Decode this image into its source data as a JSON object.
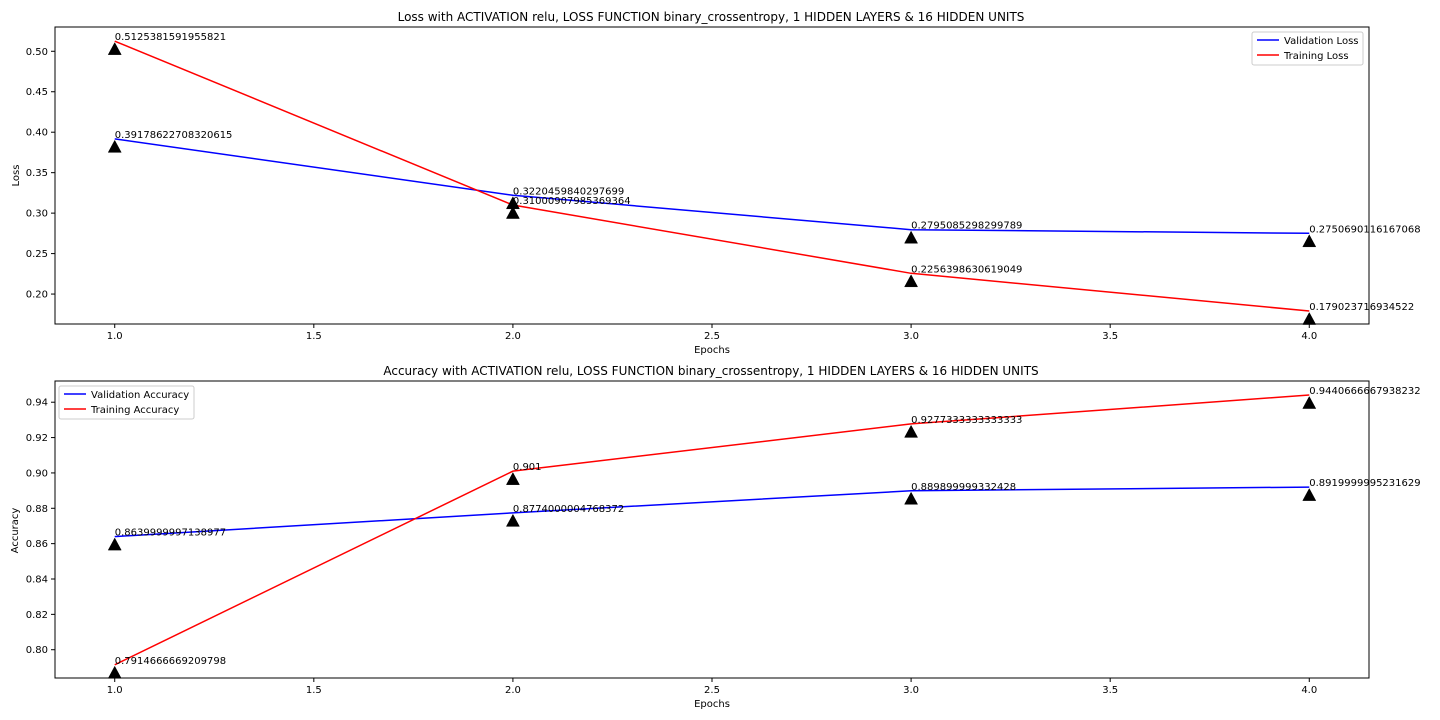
{
  "chart_data": [
    {
      "type": "line",
      "title": "Loss with ACTIVATION relu, LOSS FUNCTION binary_crossentropy, 1 HIDDEN LAYERS & 16 HIDDEN UNITS",
      "xlabel": "Epochs",
      "ylabel": "Loss",
      "x": [
        1,
        2,
        3,
        4
      ],
      "xlim": [
        0.85,
        4.15
      ],
      "ylim": [
        0.163,
        0.53
      ],
      "xticks": [
        "1.0",
        "1.5",
        "2.0",
        "2.5",
        "3.0",
        "3.5",
        "4.0"
      ],
      "yticks": [
        "0.20",
        "0.25",
        "0.30",
        "0.35",
        "0.40",
        "0.45",
        "0.50"
      ],
      "legend_position": "upper right",
      "series": [
        {
          "name": "Validation Loss",
          "color": "#0000ff",
          "values": [
            0.39178622708320615,
            0.3220459840297699,
            0.2795085298299789,
            0.2750690116167068
          ],
          "labels": [
            "0.39178622708320615",
            "0.3220459840297699",
            "0.2795085298299789",
            "0.2750690116167068"
          ]
        },
        {
          "name": "Training Loss",
          "color": "#ff0000",
          "values": [
            0.5125381591955821,
            0.31000907985369364,
            0.2256398630619049,
            0.179023716934522
          ],
          "labels": [
            "0.5125381591955821",
            "0.31000907985369364",
            "0.2256398630619049",
            "0.179023716934522"
          ]
        }
      ]
    },
    {
      "type": "line",
      "title": "Accuracy with ACTIVATION relu, LOSS FUNCTION binary_crossentropy, 1 HIDDEN LAYERS & 16 HIDDEN UNITS",
      "xlabel": "Epochs",
      "ylabel": "Accuracy",
      "x": [
        1,
        2,
        3,
        4
      ],
      "xlim": [
        0.85,
        4.15
      ],
      "ylim": [
        0.784,
        0.952
      ],
      "xticks": [
        "1.0",
        "1.5",
        "2.0",
        "2.5",
        "3.0",
        "3.5",
        "4.0"
      ],
      "yticks": [
        "0.80",
        "0.82",
        "0.84",
        "0.86",
        "0.88",
        "0.90",
        "0.92",
        "0.94"
      ],
      "legend_position": "upper left",
      "series": [
        {
          "name": "Validation Accuracy",
          "color": "#0000ff",
          "values": [
            0.8639999997138977,
            0.8774000004768372,
            0.889899999332428,
            0.8919999995231629
          ],
          "labels": [
            "0.8639999997138977",
            "0.8774000004768372",
            "0.889899999332428",
            "0.8919999995231629"
          ]
        },
        {
          "name": "Training Accuracy",
          "color": "#ff0000",
          "values": [
            0.7914666669209798,
            0.901,
            0.9277333333333333,
            0.9440666667938232
          ],
          "labels": [
            "0.7914666669209798",
            "0.901",
            "0.9277333333333333",
            "0.9440666667938232"
          ]
        }
      ]
    }
  ]
}
